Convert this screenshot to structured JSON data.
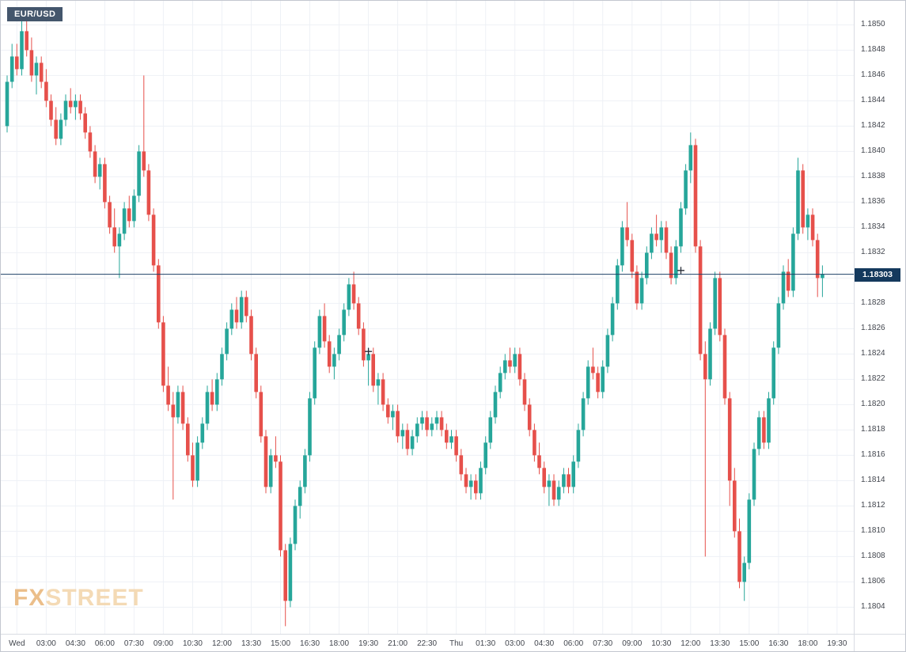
{
  "symbol_badge": {
    "label": "EUR/USD"
  },
  "price_label": {
    "value": "1.18303"
  },
  "watermark": {
    "fx": "FX",
    "street": "STREET"
  },
  "colors": {
    "up": "#26a69a",
    "down": "#e6504b",
    "grid": "#eef1f6",
    "axis_text": "#42464e",
    "price_line": "#1e4166",
    "price_badge_bg": "#14395d",
    "symbol_badge_bg": "#44566c",
    "watermark_fx": "#e9b87e",
    "watermark_street": "#f3d7ae",
    "background": "#ffffff"
  },
  "chart_data": {
    "type": "candlestick",
    "symbol": "EUR/USD",
    "interval_minutes": 15,
    "current_price": 1.18303,
    "y_axis": {
      "min": 1.1804,
      "max": 1.185,
      "step": 0.0002,
      "labels": [
        "1.1850",
        "1.1848",
        "1.1846",
        "1.1844",
        "1.1842",
        "1.1840",
        "1.1838",
        "1.1836",
        "1.1834",
        "1.1832",
        "1.1830",
        "1.1828",
        "1.1826",
        "1.1824",
        "1.1822",
        "1.1820",
        "1.1818",
        "1.1816",
        "1.1814",
        "1.1812",
        "1.1810",
        "1.1808",
        "1.1806",
        "1.1804"
      ]
    },
    "x_axis": {
      "labels": [
        "Wed",
        "03:00",
        "04:30",
        "06:00",
        "07:30",
        "09:00",
        "10:30",
        "12:00",
        "13:30",
        "15:00",
        "16:30",
        "18:00",
        "19:30",
        "21:00",
        "22:30",
        "Thu",
        "01:30",
        "03:00",
        "04:30",
        "06:00",
        "07:30",
        "09:00",
        "10:30",
        "12:00",
        "13:30",
        "15:00",
        "16:30",
        "18:00",
        "19:30"
      ],
      "first_label_candle_index": 2,
      "candles_per_label": 6
    },
    "candles": [
      [
        1.1842,
        1.1846,
        1.18415,
        1.18455
      ],
      [
        1.18455,
        1.18485,
        1.1845,
        1.18475
      ],
      [
        1.18475,
        1.18485,
        1.1846,
        1.18465
      ],
      [
        1.18465,
        1.18505,
        1.1846,
        1.18495
      ],
      [
        1.18495,
        1.1851,
        1.18475,
        1.1848
      ],
      [
        1.1848,
        1.1849,
        1.18455,
        1.1846
      ],
      [
        1.1846,
        1.18475,
        1.18445,
        1.1847
      ],
      [
        1.1847,
        1.18475,
        1.1845,
        1.18455
      ],
      [
        1.18455,
        1.18465,
        1.18435,
        1.1844
      ],
      [
        1.1844,
        1.18445,
        1.1842,
        1.18425
      ],
      [
        1.18425,
        1.18435,
        1.18405,
        1.1841
      ],
      [
        1.1841,
        1.1843,
        1.18405,
        1.18425
      ],
      [
        1.18425,
        1.18445,
        1.1842,
        1.1844
      ],
      [
        1.1844,
        1.1845,
        1.1843,
        1.18435
      ],
      [
        1.18435,
        1.18445,
        1.18425,
        1.1844
      ],
      [
        1.1844,
        1.18445,
        1.18425,
        1.1843
      ],
      [
        1.1843,
        1.18435,
        1.1841,
        1.18415
      ],
      [
        1.18415,
        1.1842,
        1.18395,
        1.184
      ],
      [
        1.184,
        1.18405,
        1.18375,
        1.1838
      ],
      [
        1.1838,
        1.18395,
        1.1837,
        1.1839
      ],
      [
        1.1839,
        1.18395,
        1.18355,
        1.1836
      ],
      [
        1.1836,
        1.18365,
        1.18335,
        1.1834
      ],
      [
        1.1834,
        1.18355,
        1.1832,
        1.18325
      ],
      [
        1.18325,
        1.1834,
        1.183,
        1.18335
      ],
      [
        1.18335,
        1.1836,
        1.1833,
        1.18355
      ],
      [
        1.18355,
        1.18365,
        1.1834,
        1.18345
      ],
      [
        1.18345,
        1.1837,
        1.1834,
        1.18365
      ],
      [
        1.18365,
        1.18405,
        1.1836,
        1.184
      ],
      [
        1.184,
        1.1846,
        1.1838,
        1.18385
      ],
      [
        1.18385,
        1.1839,
        1.18345,
        1.1835
      ],
      [
        1.1835,
        1.18355,
        1.18305,
        1.1831
      ],
      [
        1.1831,
        1.18315,
        1.1826,
        1.18265
      ],
      [
        1.18265,
        1.1827,
        1.1821,
        1.18215
      ],
      [
        1.18215,
        1.1823,
        1.18195,
        1.182
      ],
      [
        1.182,
        1.1821,
        1.18125,
        1.1819
      ],
      [
        1.1819,
        1.18215,
        1.18185,
        1.1821
      ],
      [
        1.1821,
        1.18215,
        1.1818,
        1.18185
      ],
      [
        1.18185,
        1.1819,
        1.18155,
        1.1816
      ],
      [
        1.1816,
        1.1817,
        1.18135,
        1.1814
      ],
      [
        1.1814,
        1.18175,
        1.18135,
        1.1817
      ],
      [
        1.1817,
        1.1819,
        1.18165,
        1.18185
      ],
      [
        1.18185,
        1.18215,
        1.1818,
        1.1821
      ],
      [
        1.1821,
        1.1822,
        1.18195,
        1.182
      ],
      [
        1.182,
        1.18225,
        1.18195,
        1.1822
      ],
      [
        1.1822,
        1.18245,
        1.18215,
        1.1824
      ],
      [
        1.1824,
        1.18265,
        1.18235,
        1.1826
      ],
      [
        1.1826,
        1.1828,
        1.18255,
        1.18275
      ],
      [
        1.18275,
        1.18285,
        1.1826,
        1.18265
      ],
      [
        1.18265,
        1.1829,
        1.1826,
        1.18285
      ],
      [
        1.18285,
        1.1829,
        1.18265,
        1.1827
      ],
      [
        1.1827,
        1.18275,
        1.18235,
        1.1824
      ],
      [
        1.1824,
        1.18245,
        1.18205,
        1.1821
      ],
      [
        1.1821,
        1.18215,
        1.1817,
        1.18175
      ],
      [
        1.18175,
        1.1818,
        1.1813,
        1.18135
      ],
      [
        1.18135,
        1.18165,
        1.1813,
        1.1816
      ],
      [
        1.1816,
        1.18175,
        1.1815,
        1.18155
      ],
      [
        1.18155,
        1.1816,
        1.1808,
        1.18085
      ],
      [
        1.18085,
        1.1809,
        1.18025,
        1.18045
      ],
      [
        1.18045,
        1.18095,
        1.1804,
        1.1809
      ],
      [
        1.1809,
        1.18125,
        1.18085,
        1.1812
      ],
      [
        1.1812,
        1.1814,
        1.1811,
        1.18135
      ],
      [
        1.18135,
        1.18165,
        1.1813,
        1.1816
      ],
      [
        1.1816,
        1.1821,
        1.18155,
        1.18205
      ],
      [
        1.18205,
        1.1825,
        1.182,
        1.18245
      ],
      [
        1.18245,
        1.18275,
        1.1824,
        1.1827
      ],
      [
        1.1827,
        1.1828,
        1.18245,
        1.1825
      ],
      [
        1.1825,
        1.18255,
        1.18225,
        1.1823
      ],
      [
        1.1823,
        1.18245,
        1.1822,
        1.1824
      ],
      [
        1.1824,
        1.1826,
        1.18235,
        1.18255
      ],
      [
        1.18255,
        1.1828,
        1.1825,
        1.18275
      ],
      [
        1.18275,
        1.183,
        1.1827,
        1.18295
      ],
      [
        1.18295,
        1.18305,
        1.18275,
        1.1828
      ],
      [
        1.1828,
        1.18285,
        1.18255,
        1.1826
      ],
      [
        1.1826,
        1.18265,
        1.1823,
        1.18235
      ],
      [
        1.18235,
        1.18245,
        1.18215,
        1.1824
      ],
      [
        1.1824,
        1.18245,
        1.1821,
        1.18215
      ],
      [
        1.18215,
        1.18225,
        1.182,
        1.1822
      ],
      [
        1.1822,
        1.18225,
        1.18195,
        1.182
      ],
      [
        1.182,
        1.18205,
        1.18185,
        1.1819
      ],
      [
        1.1819,
        1.182,
        1.1818,
        1.18195
      ],
      [
        1.18195,
        1.182,
        1.1817,
        1.18175
      ],
      [
        1.18175,
        1.18185,
        1.18165,
        1.1818
      ],
      [
        1.1818,
        1.18185,
        1.1816,
        1.18165
      ],
      [
        1.18165,
        1.1818,
        1.1816,
        1.18175
      ],
      [
        1.18175,
        1.1819,
        1.1817,
        1.18185
      ],
      [
        1.18185,
        1.18195,
        1.1818,
        1.1819
      ],
      [
        1.1819,
        1.18195,
        1.18175,
        1.1818
      ],
      [
        1.1818,
        1.1819,
        1.18175,
        1.18185
      ],
      [
        1.18185,
        1.18195,
        1.1818,
        1.1819
      ],
      [
        1.1819,
        1.18195,
        1.18175,
        1.1818
      ],
      [
        1.1818,
        1.18185,
        1.18165,
        1.1817
      ],
      [
        1.1817,
        1.1818,
        1.18165,
        1.18175
      ],
      [
        1.18175,
        1.1818,
        1.18155,
        1.1816
      ],
      [
        1.1816,
        1.18165,
        1.1814,
        1.18145
      ],
      [
        1.18145,
        1.1815,
        1.1813,
        1.18135
      ],
      [
        1.18135,
        1.18145,
        1.18125,
        1.1814
      ],
      [
        1.1814,
        1.18145,
        1.18125,
        1.1813
      ],
      [
        1.1813,
        1.18155,
        1.18125,
        1.1815
      ],
      [
        1.1815,
        1.18175,
        1.18145,
        1.1817
      ],
      [
        1.1817,
        1.18195,
        1.18165,
        1.1819
      ],
      [
        1.1819,
        1.18215,
        1.18185,
        1.1821
      ],
      [
        1.1821,
        1.1823,
        1.18205,
        1.18225
      ],
      [
        1.18225,
        1.1824,
        1.1822,
        1.18235
      ],
      [
        1.18235,
        1.18245,
        1.18225,
        1.1823
      ],
      [
        1.1823,
        1.18245,
        1.18225,
        1.1824
      ],
      [
        1.1824,
        1.18245,
        1.18215,
        1.1822
      ],
      [
        1.1822,
        1.18225,
        1.18195,
        1.182
      ],
      [
        1.182,
        1.18205,
        1.18175,
        1.1818
      ],
      [
        1.1818,
        1.18185,
        1.18155,
        1.1816
      ],
      [
        1.1816,
        1.1817,
        1.18145,
        1.1815
      ],
      [
        1.1815,
        1.18155,
        1.1813,
        1.18135
      ],
      [
        1.18135,
        1.18145,
        1.1812,
        1.1814
      ],
      [
        1.1814,
        1.18145,
        1.1812,
        1.18125
      ],
      [
        1.18125,
        1.1814,
        1.1812,
        1.18135
      ],
      [
        1.18135,
        1.1815,
        1.1813,
        1.18145
      ],
      [
        1.18145,
        1.1815,
        1.1813,
        1.18135
      ],
      [
        1.18135,
        1.1816,
        1.1813,
        1.18155
      ],
      [
        1.18155,
        1.18185,
        1.1815,
        1.1818
      ],
      [
        1.1818,
        1.1821,
        1.18175,
        1.18205
      ],
      [
        1.18205,
        1.18235,
        1.182,
        1.1823
      ],
      [
        1.1823,
        1.18245,
        1.1822,
        1.18225
      ],
      [
        1.18225,
        1.1823,
        1.18205,
        1.1821
      ],
      [
        1.1821,
        1.18235,
        1.18205,
        1.1823
      ],
      [
        1.1823,
        1.1826,
        1.18225,
        1.18255
      ],
      [
        1.18255,
        1.18285,
        1.1825,
        1.1828
      ],
      [
        1.1828,
        1.18315,
        1.18275,
        1.1831
      ],
      [
        1.1831,
        1.18345,
        1.18305,
        1.1834
      ],
      [
        1.1834,
        1.1836,
        1.18325,
        1.1833
      ],
      [
        1.1833,
        1.18335,
        1.183,
        1.18305
      ],
      [
        1.18305,
        1.1831,
        1.18275,
        1.1828
      ],
      [
        1.1828,
        1.18305,
        1.18275,
        1.183
      ],
      [
        1.183,
        1.18325,
        1.18295,
        1.1832
      ],
      [
        1.1832,
        1.1834,
        1.18315,
        1.18335
      ],
      [
        1.18335,
        1.1835,
        1.18325,
        1.1833
      ],
      [
        1.1833,
        1.18345,
        1.1832,
        1.1834
      ],
      [
        1.1834,
        1.18345,
        1.18315,
        1.1832
      ],
      [
        1.1832,
        1.18325,
        1.18295,
        1.183
      ],
      [
        1.183,
        1.1833,
        1.18295,
        1.18325
      ],
      [
        1.18325,
        1.1836,
        1.1832,
        1.18355
      ],
      [
        1.18355,
        1.1839,
        1.1835,
        1.18385
      ],
      [
        1.18385,
        1.18415,
        1.18375,
        1.18405
      ],
      [
        1.18405,
        1.1841,
        1.1832,
        1.18325
      ],
      [
        1.18325,
        1.1833,
        1.18235,
        1.1824
      ],
      [
        1.1824,
        1.1825,
        1.1808,
        1.1822
      ],
      [
        1.1822,
        1.18265,
        1.18215,
        1.1826
      ],
      [
        1.1826,
        1.18305,
        1.18255,
        1.183
      ],
      [
        1.183,
        1.18305,
        1.1825,
        1.18255
      ],
      [
        1.18255,
        1.1826,
        1.182,
        1.18205
      ],
      [
        1.18205,
        1.1821,
        1.1812,
        1.1814
      ],
      [
        1.1814,
        1.1815,
        1.18095,
        1.181
      ],
      [
        1.181,
        1.1811,
        1.18055,
        1.1806
      ],
      [
        1.1806,
        1.1808,
        1.18045,
        1.18075
      ],
      [
        1.18075,
        1.1813,
        1.1807,
        1.18125
      ],
      [
        1.18125,
        1.1817,
        1.1812,
        1.18165
      ],
      [
        1.18165,
        1.18195,
        1.1816,
        1.1819
      ],
      [
        1.1819,
        1.18195,
        1.18165,
        1.1817
      ],
      [
        1.1817,
        1.1821,
        1.18165,
        1.18205
      ],
      [
        1.18205,
        1.1825,
        1.182,
        1.18245
      ],
      [
        1.18245,
        1.18285,
        1.1824,
        1.1828
      ],
      [
        1.1828,
        1.1831,
        1.18275,
        1.18305
      ],
      [
        1.18305,
        1.18315,
        1.18285,
        1.1829
      ],
      [
        1.1829,
        1.1834,
        1.18285,
        1.18335
      ],
      [
        1.18335,
        1.18395,
        1.1833,
        1.18385
      ],
      [
        1.18385,
        1.1839,
        1.18335,
        1.1834
      ],
      [
        1.1834,
        1.18355,
        1.1833,
        1.1835
      ],
      [
        1.1835,
        1.18355,
        1.18325,
        1.1833
      ],
      [
        1.1833,
        1.18335,
        1.18285,
        1.183
      ],
      [
        1.183,
        1.1831,
        1.18285,
        1.18303
      ]
    ],
    "markers": [
      {
        "index": 74,
        "price": 1.18242
      },
      {
        "index": 138,
        "price": 1.18306
      }
    ]
  }
}
